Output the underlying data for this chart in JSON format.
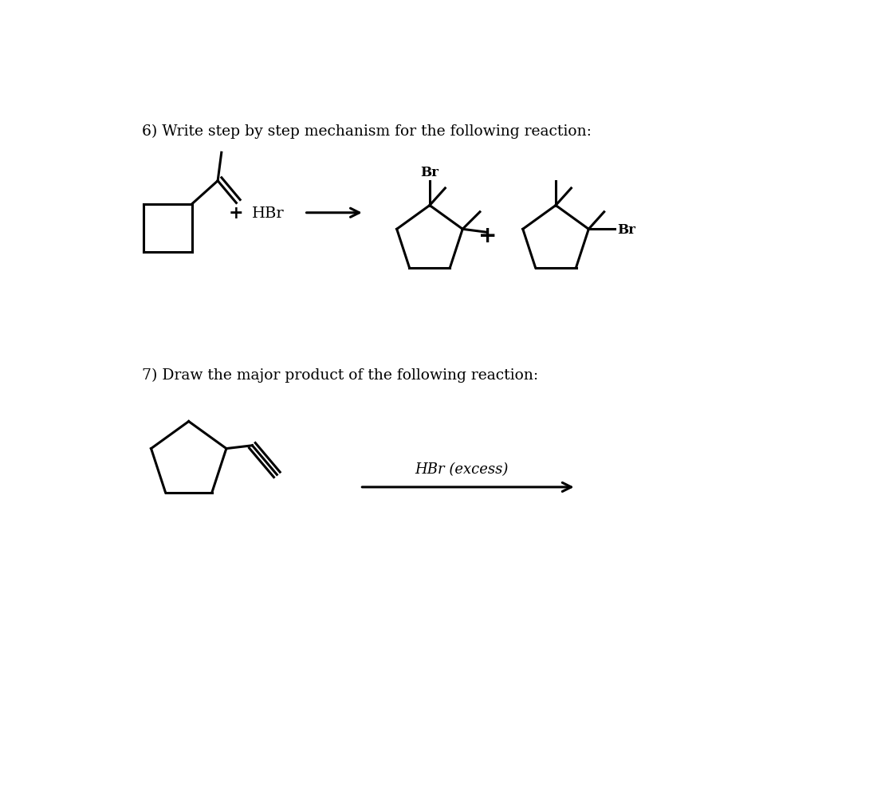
{
  "title6": "6) Write step by step mechanism for the following reaction:",
  "title7": "7) Draw the major product of the following reaction:",
  "reagent7": "HBr (excess)",
  "bg_color": "#ffffff",
  "line_color": "#000000",
  "text_color": "#000000",
  "font_size_title": 13.5,
  "lw": 2.2
}
